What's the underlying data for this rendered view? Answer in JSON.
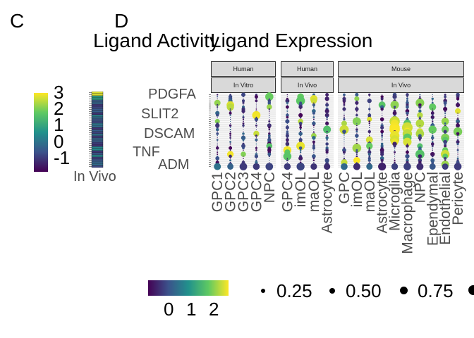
{
  "panel_labels": {
    "c": "C",
    "d": "D"
  },
  "titles": {
    "activity": "Ligand Activity",
    "expression": "Ligand Expression"
  },
  "activity_legend": {
    "ticks": [
      "3",
      "2",
      "1",
      "0",
      "-1"
    ]
  },
  "activity_column_label": "In Vivo",
  "facets": {
    "human_vitro": {
      "species": "Human",
      "context": "In Vitro"
    },
    "human_vivo": {
      "species": "Human",
      "context": "In Vivo"
    },
    "mouse_vivo": {
      "species": "Mouse",
      "context": "In Vivo"
    }
  },
  "ligand_labels_visible": [
    "PDGFA",
    "SLIT2",
    "DSCAM",
    "TNF",
    "ADM"
  ],
  "expression_legend": {
    "ticks": [
      "0",
      "1",
      "2"
    ]
  },
  "size_legend": {
    "labels": [
      "0.25",
      "0.50",
      "0.75"
    ]
  },
  "colors": {
    "viridis_low": "#440154",
    "viridis_mid": "#21918c",
    "viridis_high": "#fde725",
    "strip": "#d9d9d9"
  },
  "chart_data": [
    {
      "type": "heatmap",
      "title": "Ligand Activity",
      "columns": [
        "In Vivo"
      ],
      "color_range": [
        -1.5,
        3.2
      ],
      "legend_ticks": [
        3,
        2,
        1,
        0,
        -1
      ]
    },
    {
      "type": "scatter",
      "title": "Ligand Expression",
      "color_ticks": [
        0,
        1,
        2
      ],
      "size_ticks": [
        0.25,
        0.5,
        0.75
      ],
      "facets": [
        {
          "species": "Human",
          "context": "In Vitro",
          "categories": [
            "GPC1",
            "GPC2",
            "GPC3",
            "GPC4",
            "NPC"
          ]
        },
        {
          "species": "Human",
          "context": "In Vivo",
          "categories": [
            "GPC4",
            "imOL",
            "maOL",
            "Astrocyte"
          ]
        },
        {
          "species": "Mouse",
          "context": "In Vivo",
          "categories": [
            "GPC",
            "imOL",
            "maOL",
            "Astrocyte",
            "Microglia",
            "Macrophage",
            "NPC",
            "Ependymal",
            "Endothelial",
            "Pericyte"
          ]
        }
      ]
    }
  ]
}
